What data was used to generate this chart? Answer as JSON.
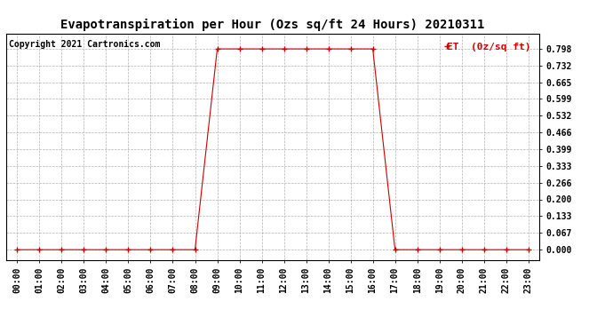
{
  "title": "Evapotranspiration per Hour (Ozs sq/ft 24 Hours) 20210311",
  "copyright": "Copyright 2021 Cartronics.com",
  "legend_label": "ET  (0z/sq ft)",
  "line_color": "#cc0000",
  "marker": "+",
  "background_color": "#ffffff",
  "grid_color": "#aaaaaa",
  "title_fontsize": 10,
  "hours": [
    0,
    1,
    2,
    3,
    4,
    5,
    6,
    7,
    8,
    9,
    10,
    11,
    12,
    13,
    14,
    15,
    16,
    17,
    18,
    19,
    20,
    21,
    22,
    23
  ],
  "values": [
    0.0,
    0.0,
    0.0,
    0.0,
    0.0,
    0.0,
    0.0,
    0.0,
    0.0,
    0.798,
    0.798,
    0.798,
    0.798,
    0.798,
    0.798,
    0.798,
    0.798,
    0.0,
    0.0,
    0.0,
    0.0,
    0.0,
    0.0,
    0.0
  ],
  "yticks": [
    0.0,
    0.067,
    0.133,
    0.2,
    0.266,
    0.333,
    0.399,
    0.466,
    0.532,
    0.599,
    0.665,
    0.732,
    0.798
  ],
  "ylim": [
    -0.04,
    0.86
  ],
  "xlim": [
    -0.5,
    23.5
  ],
  "tick_fontsize": 7,
  "legend_fontsize": 8,
  "copyright_fontsize": 7
}
